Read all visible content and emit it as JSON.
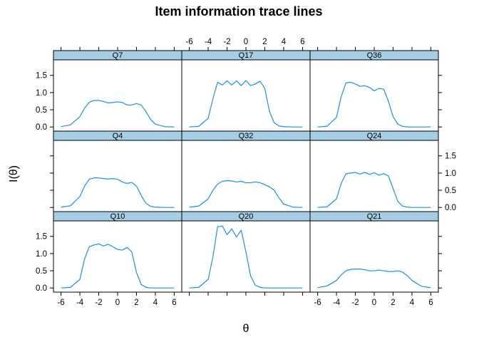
{
  "chart_data": {
    "type": "line",
    "title": "Item information trace lines",
    "xlabel": "θ",
    "ylabel": "I(θ)",
    "xlim": [
      -6.8,
      6.8
    ],
    "ylim": [
      -0.12,
      1.95
    ],
    "x_ticks": [
      -6,
      -4,
      -2,
      0,
      2,
      4,
      6
    ],
    "y_ticks": [
      0.0,
      0.5,
      1.0,
      1.5
    ],
    "grid": false,
    "layout": {
      "columns": 3,
      "rows": 3
    },
    "colors": {
      "line": "#1f8fe6",
      "strip": "#a5cde3",
      "frame": "#000000"
    },
    "panels": [
      {
        "name": "Q7",
        "x": [
          -6,
          -5,
          -4,
          -3.5,
          -3,
          -2.5,
          -2,
          -1.5,
          -1,
          -0.5,
          0,
          0.5,
          1,
          1.5,
          2,
          2.5,
          3,
          3.5,
          4,
          5,
          6
        ],
        "y": [
          0.01,
          0.06,
          0.3,
          0.55,
          0.72,
          0.77,
          0.77,
          0.74,
          0.7,
          0.71,
          0.73,
          0.71,
          0.64,
          0.64,
          0.68,
          0.64,
          0.45,
          0.22,
          0.08,
          0.01,
          0.0
        ]
      },
      {
        "name": "Q17",
        "x": [
          -6,
          -5,
          -4,
          -3.5,
          -3,
          -2.5,
          -2,
          -1.5,
          -1,
          -0.5,
          0,
          0.5,
          1,
          1.5,
          2,
          2.5,
          3,
          3.5,
          4,
          5,
          6
        ],
        "y": [
          0.0,
          0.02,
          0.25,
          0.82,
          1.3,
          1.22,
          1.34,
          1.22,
          1.34,
          1.2,
          1.35,
          1.2,
          1.25,
          1.33,
          1.12,
          0.45,
          0.12,
          0.03,
          0.01,
          0.0,
          0.0
        ]
      },
      {
        "name": "Q36",
        "x": [
          -6,
          -5,
          -4,
          -3.5,
          -3,
          -2.5,
          -2,
          -1.5,
          -1,
          -0.5,
          0,
          0.5,
          1,
          1.5,
          2,
          2.5,
          3,
          3.5,
          4,
          5,
          6
        ],
        "y": [
          0.0,
          0.02,
          0.28,
          0.88,
          1.28,
          1.3,
          1.25,
          1.18,
          1.2,
          1.15,
          1.05,
          1.12,
          1.1,
          0.75,
          0.3,
          0.08,
          0.02,
          0.0,
          0.0,
          0.0,
          0.0
        ]
      },
      {
        "name": "Q4",
        "x": [
          -6,
          -5,
          -4,
          -3.5,
          -3,
          -2.5,
          -2,
          -1.5,
          -1,
          -0.5,
          0,
          0.5,
          1,
          1.5,
          2,
          2.5,
          3,
          3.5,
          4,
          5,
          6
        ],
        "y": [
          0.01,
          0.05,
          0.32,
          0.62,
          0.82,
          0.86,
          0.86,
          0.84,
          0.83,
          0.84,
          0.82,
          0.74,
          0.7,
          0.73,
          0.62,
          0.35,
          0.12,
          0.03,
          0.01,
          0.0,
          0.0
        ]
      },
      {
        "name": "Q32",
        "x": [
          -6,
          -5,
          -4,
          -3.5,
          -3,
          -2.5,
          -2,
          -1.5,
          -1,
          -0.5,
          0,
          0.5,
          1,
          1.5,
          2,
          2.5,
          3,
          3.5,
          4,
          5,
          6
        ],
        "y": [
          0.01,
          0.04,
          0.25,
          0.5,
          0.68,
          0.76,
          0.78,
          0.77,
          0.74,
          0.76,
          0.72,
          0.72,
          0.74,
          0.72,
          0.66,
          0.6,
          0.5,
          0.28,
          0.1,
          0.01,
          0.0
        ]
      },
      {
        "name": "Q24",
        "x": [
          -6,
          -5,
          -4,
          -3.5,
          -3,
          -2.5,
          -2,
          -1.5,
          -1,
          -0.5,
          0,
          0.5,
          1,
          1.5,
          2,
          2.5,
          3,
          3.5,
          4,
          5,
          6
        ],
        "y": [
          0.0,
          0.02,
          0.25,
          0.7,
          0.98,
          1.0,
          1.02,
          0.97,
          1.02,
          0.96,
          1.01,
          0.94,
          0.98,
          0.92,
          0.55,
          0.18,
          0.04,
          0.01,
          0.0,
          0.0,
          0.0
        ]
      },
      {
        "name": "Q10",
        "x": [
          -6,
          -5,
          -4,
          -3.5,
          -3,
          -2.5,
          -2,
          -1.5,
          -1,
          -0.5,
          0,
          0.5,
          1,
          1.5,
          2,
          2.5,
          3,
          3.5,
          4,
          5,
          6
        ],
        "y": [
          0.0,
          0.02,
          0.25,
          0.85,
          1.2,
          1.25,
          1.28,
          1.22,
          1.27,
          1.2,
          1.12,
          1.1,
          1.18,
          1.05,
          0.45,
          0.1,
          0.02,
          0.0,
          0.0,
          0.0,
          0.0
        ]
      },
      {
        "name": "Q20",
        "x": [
          -6,
          -5,
          -4,
          -3.5,
          -3,
          -2.5,
          -2,
          -1.5,
          -1,
          -0.5,
          0,
          0.5,
          1,
          1.5,
          2,
          2.5,
          3,
          3.5,
          4,
          5,
          6
        ],
        "y": [
          0.0,
          0.02,
          0.25,
          0.9,
          1.78,
          1.8,
          1.55,
          1.72,
          1.48,
          1.68,
          1.05,
          0.35,
          0.08,
          0.02,
          0.0,
          0.0,
          0.0,
          0.0,
          0.0,
          0.0,
          0.0
        ]
      },
      {
        "name": "Q21",
        "x": [
          -6,
          -5,
          -4,
          -3.5,
          -3,
          -2.5,
          -2,
          -1.5,
          -1,
          -0.5,
          0,
          0.5,
          1,
          1.5,
          2,
          2.5,
          3,
          3.5,
          4,
          5,
          6
        ],
        "y": [
          0.01,
          0.06,
          0.22,
          0.38,
          0.5,
          0.54,
          0.55,
          0.55,
          0.53,
          0.5,
          0.5,
          0.52,
          0.5,
          0.48,
          0.48,
          0.5,
          0.46,
          0.36,
          0.22,
          0.05,
          0.01
        ]
      }
    ]
  }
}
